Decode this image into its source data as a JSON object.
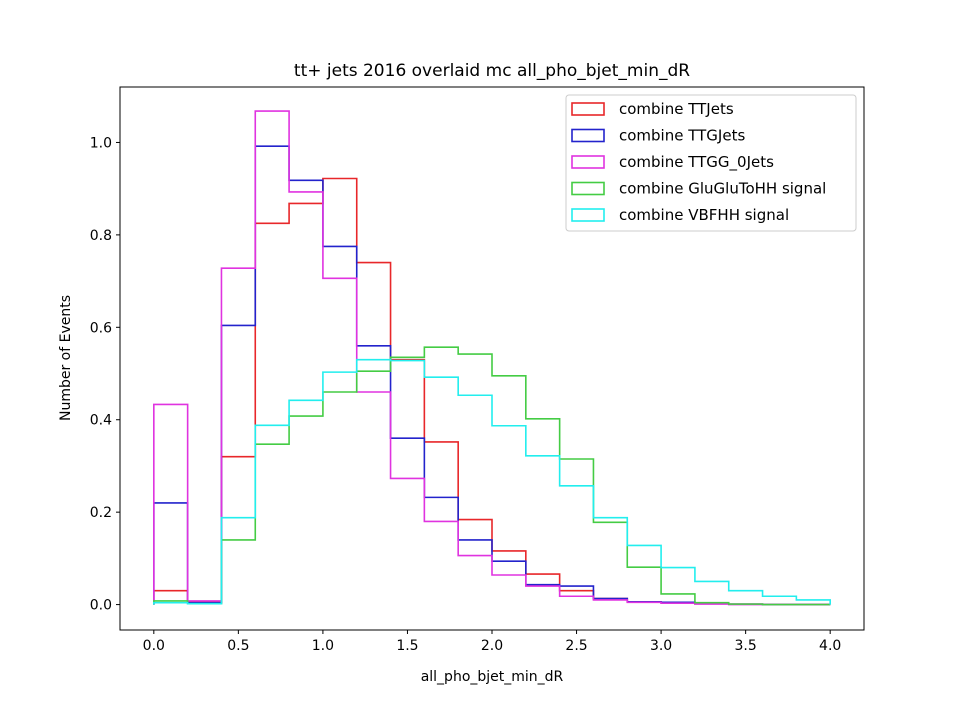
{
  "chart_data": {
    "type": "step",
    "title": "tt+ jets 2016 overlaid mc all_pho_bjet_min_dR",
    "xlabel": "all_pho_bjet_min_dR",
    "ylabel": "Number of Events",
    "xlim": [
      -0.2,
      4.2
    ],
    "ylim": [
      -0.055,
      1.12
    ],
    "xticks": [
      0.0,
      0.5,
      1.0,
      1.5,
      2.0,
      2.5,
      3.0,
      3.5,
      4.0
    ],
    "xtick_labels": [
      "0.0",
      "0.5",
      "1.0",
      "1.5",
      "2.0",
      "2.5",
      "3.0",
      "3.5",
      "4.0"
    ],
    "yticks": [
      0.0,
      0.2,
      0.4,
      0.6,
      0.8,
      1.0
    ],
    "ytick_labels": [
      "0.0",
      "0.2",
      "0.4",
      "0.6",
      "0.8",
      "1.0"
    ],
    "bin_edges": [
      0.0,
      0.2,
      0.4,
      0.6,
      0.8,
      1.0,
      1.2,
      1.4,
      1.6,
      1.8,
      2.0,
      2.2,
      2.4,
      2.6,
      2.8,
      3.0,
      3.2,
      3.4,
      3.6,
      3.8,
      4.0
    ],
    "legend_position": "upper right",
    "series": [
      {
        "name": "combine TTJets",
        "color": "#e8272a",
        "values": [
          0.03,
          0.005,
          0.32,
          0.825,
          0.868,
          0.922,
          0.74,
          0.53,
          0.352,
          0.184,
          0.116,
          0.066,
          0.03,
          0.013,
          0.006,
          0.004,
          0.002,
          0.001,
          0.0,
          0.0
        ]
      },
      {
        "name": "combine TTGJets",
        "color": "#2323cc",
        "values": [
          0.22,
          0.004,
          0.604,
          0.992,
          0.918,
          0.775,
          0.56,
          0.36,
          0.232,
          0.14,
          0.094,
          0.043,
          0.04,
          0.013,
          0.006,
          0.005,
          0.002,
          0.001,
          0.0,
          0.0
        ]
      },
      {
        "name": "combine TTGG_0Jets",
        "color": "#e033e0",
        "values": [
          0.433,
          0.008,
          0.728,
          1.068,
          0.893,
          0.706,
          0.46,
          0.273,
          0.18,
          0.106,
          0.064,
          0.04,
          0.018,
          0.01,
          0.005,
          0.003,
          0.001,
          0.0,
          0.0,
          0.0
        ]
      },
      {
        "name": "combine GluGluToHH signal",
        "color": "#44cc44",
        "values": [
          0.008,
          0.002,
          0.14,
          0.347,
          0.408,
          0.46,
          0.505,
          0.535,
          0.557,
          0.542,
          0.495,
          0.402,
          0.315,
          0.178,
          0.081,
          0.023,
          0.004,
          0.001,
          0.0,
          0.0
        ]
      },
      {
        "name": "combine VBFHH signal",
        "color": "#22eeee",
        "values": [
          0.004,
          0.002,
          0.188,
          0.388,
          0.442,
          0.503,
          0.53,
          0.528,
          0.492,
          0.453,
          0.387,
          0.322,
          0.257,
          0.188,
          0.128,
          0.08,
          0.05,
          0.03,
          0.018,
          0.01
        ]
      }
    ]
  }
}
